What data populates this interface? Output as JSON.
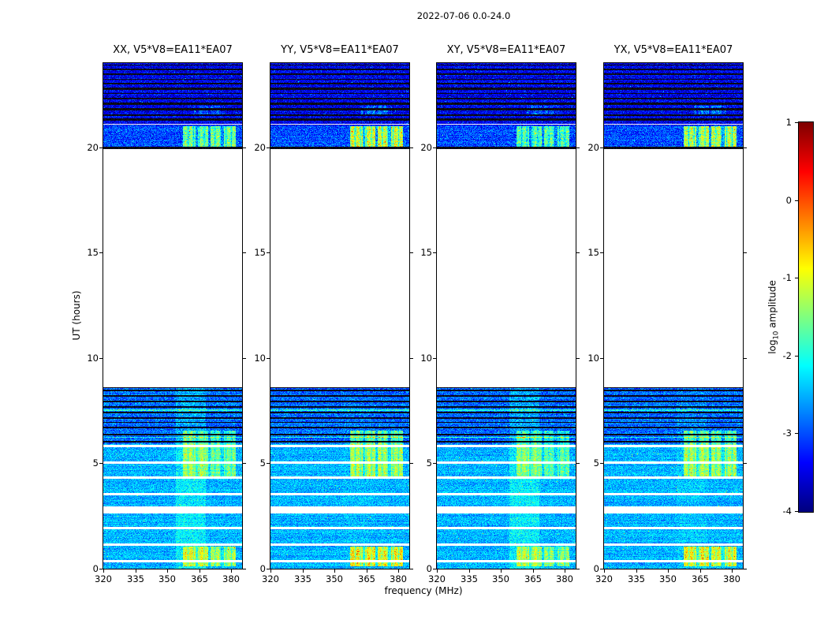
{
  "figure": {
    "suptitle": "2022-07-06 0.0-24.0",
    "xlabel": "frequency (MHz)",
    "ylabel": "UT (hours)",
    "background": "#ffffff"
  },
  "chart_data": {
    "type": "heatmap",
    "title": "2022-07-06 0.0-24.0",
    "xlabel": "frequency (MHz)",
    "ylabel": "UT (hours)",
    "xlim": [
      320,
      385
    ],
    "ylim": [
      0,
      24
    ],
    "xticks": [
      320,
      335,
      350,
      365,
      380
    ],
    "yticks": [
      0,
      5,
      10,
      15,
      20
    ],
    "grid": false,
    "panels": [
      {
        "title": "XX, V5*V8=EA11*EA07",
        "rfi_scale": 0.8,
        "smudge": 0.3
      },
      {
        "title": "YY, V5*V8=EA11*EA07",
        "rfi_scale": 1.05,
        "smudge": 0.05
      },
      {
        "title": "XY, V5*V8=EA11*EA07",
        "rfi_scale": 0.7,
        "smudge": 0.3
      },
      {
        "title": "YX, V5*V8=EA11*EA07",
        "rfi_scale": 1.0,
        "smudge": 0.1
      }
    ],
    "colorbar": {
      "label_pre": "log",
      "label_sub": "10",
      "label_post": " amplitude",
      "ticks": [
        1,
        0,
        -1,
        -2,
        -3,
        -4
      ],
      "vmin": -4,
      "vmax": 1,
      "colormap": "jet"
    },
    "bands": [
      {
        "t0": 0.0,
        "t1": 5.9,
        "base": -2.5,
        "noise": 0.33
      },
      {
        "t0": 5.9,
        "t1": 8.62,
        "base": -2.85,
        "noise": 0.4
      },
      {
        "t0": 19.93,
        "t1": 21.05,
        "base": -3.0,
        "noise": 0.42
      },
      {
        "t0": 21.05,
        "t1": 24.01,
        "base": -3.45,
        "noise": 0.42
      }
    ],
    "white_gaps": [
      [
        0.28,
        0.4
      ],
      [
        1.06,
        1.18
      ],
      [
        1.86,
        1.98
      ],
      [
        2.6,
        2.94
      ],
      [
        3.48,
        3.6
      ],
      [
        4.24,
        4.36
      ],
      [
        4.98,
        5.1
      ],
      [
        5.76,
        5.86
      ],
      [
        21.08,
        21.14
      ]
    ],
    "black_stripes": [
      [
        5.98,
        6.04
      ],
      [
        6.32,
        6.38
      ],
      [
        6.66,
        6.72
      ],
      [
        6.92,
        6.97
      ],
      [
        7.12,
        7.18
      ],
      [
        7.36,
        7.44
      ],
      [
        7.64,
        7.7
      ],
      [
        7.9,
        7.98
      ],
      [
        8.16,
        8.22
      ],
      [
        8.42,
        8.5
      ],
      [
        8.56,
        8.62
      ],
      [
        19.93,
        20.03
      ],
      [
        21.3,
        21.38
      ],
      [
        21.52,
        21.58
      ],
      [
        21.78,
        21.88
      ],
      [
        22.04,
        22.14
      ],
      [
        22.3,
        22.36
      ],
      [
        22.54,
        22.6
      ],
      [
        22.76,
        22.86
      ],
      [
        23.02,
        23.08
      ],
      [
        23.22,
        23.28
      ],
      [
        23.44,
        23.54
      ],
      [
        23.7,
        23.76
      ],
      [
        23.9,
        23.96
      ]
    ],
    "bright_rows": [
      [
        6.2,
        6.26,
        0.9
      ],
      [
        7.5,
        7.56,
        0.8
      ]
    ],
    "rfi_windows": [
      [
        0.08,
        1.02,
        2.0,
        356.0,
        382.5
      ],
      [
        4.3,
        6.54,
        1.5,
        357.0,
        382.5
      ],
      [
        20.02,
        21.02,
        2.4,
        356.5,
        382.5
      ],
      [
        21.55,
        22.0,
        0.9,
        362.0,
        377.0
      ]
    ]
  }
}
